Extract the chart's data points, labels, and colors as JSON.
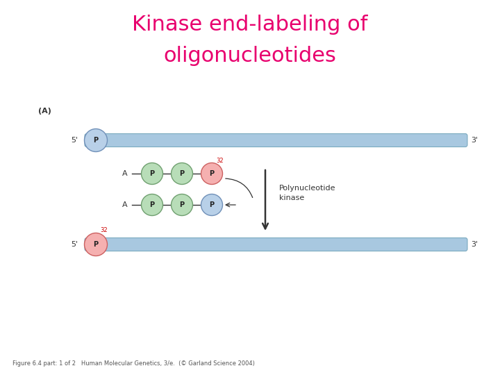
{
  "title_line1": "Kinase end-labeling of",
  "title_line2": "oligonucleotides",
  "title_color": "#e8006e",
  "title_fontsize": 22,
  "bg_color": "#ffffff",
  "label_A": "(A)",
  "strand_color": "#a8c8e0",
  "strand_edge_color": "#7aaabf",
  "p_circle_blue_fill": "#b8d0e8",
  "p_circle_blue_edge": "#7090b8",
  "p_circle_green_fill": "#b8ddb8",
  "p_circle_green_edge": "#70a070",
  "p_circle_red_fill": "#f5b0b0",
  "p_circle_red_edge": "#cc6060",
  "text_color": "#333333",
  "caption": "Figure 6.4 part: 1 of 2   Human Molecular Genetics, 3/e.  (© Garland Science 2004)"
}
